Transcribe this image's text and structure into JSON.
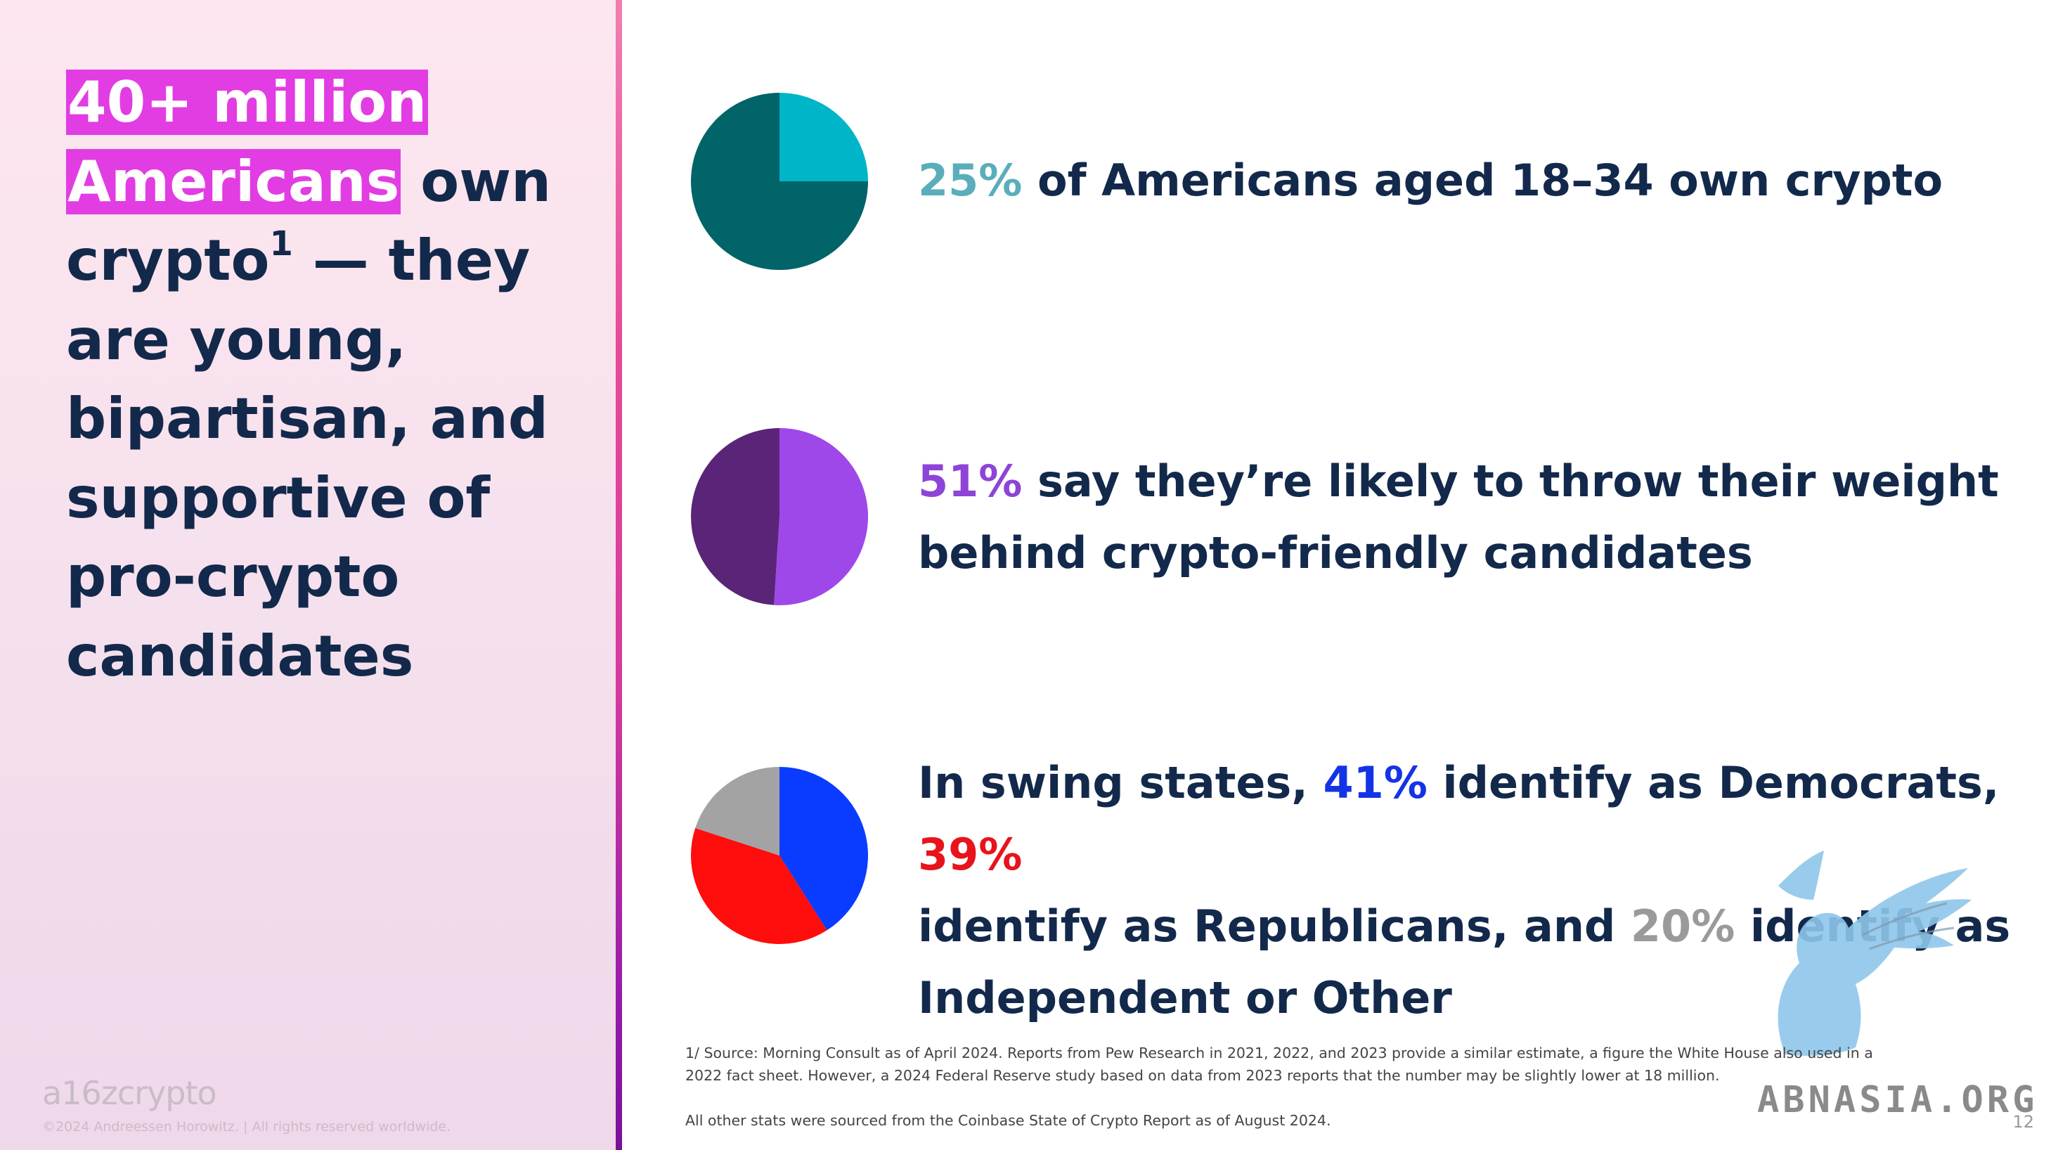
{
  "headline": {
    "highlight_line1": "40+ million",
    "highlight_line2": "Americans",
    "after_highlight": " own",
    "line3_pre": "crypto",
    "line3_sup": "1",
    "line3_post": " — they",
    "line4": "are young,",
    "line5": "bipartisan, and",
    "line6": "supportive of",
    "line7": "pro-crypto",
    "line8": "candidates"
  },
  "stats": {
    "s1_pct": "25%",
    "s1_text": " of Americans aged 18–34 own crypto",
    "s2_pct": "51%",
    "s2_text_a": " say they’re likely to throw their weight",
    "s2_text_b": "behind crypto-friendly candidates",
    "s3_a": "In swing states, ",
    "s3_dem": "41%",
    "s3_b": " identify as Democrats, ",
    "s3_rep": "39%",
    "s3_c": "identify as Republicans, and ",
    "s3_ind": "20%",
    "s3_d": " identify as",
    "s3_e": "Independent or Other"
  },
  "colors": {
    "teal_light": "#00b5c8",
    "teal_dark": "#006469",
    "purple_light": "#9f48ea",
    "purple_dark": "#5a2478",
    "dem_blue": "#0a3cff",
    "rep_red": "#ff0d0d",
    "ind_gray": "#a3a3a3",
    "pct1_text": "#5aaebb",
    "pct2_text": "#8e44d6",
    "dem_text": "#1533e6",
    "rep_text": "#e8141b",
    "ind_text": "#9a9a9a"
  },
  "chart_data": [
    {
      "type": "pie",
      "slices": [
        {
          "label": "Own crypto",
          "value": 25,
          "color": "#00b5c8"
        },
        {
          "label": "Other",
          "value": 75,
          "color": "#006469"
        }
      ]
    },
    {
      "type": "pie",
      "slices": [
        {
          "label": "Likely",
          "value": 51,
          "color": "#9f48ea"
        },
        {
          "label": "Other",
          "value": 49,
          "color": "#5a2478"
        }
      ]
    },
    {
      "type": "pie",
      "slices": [
        {
          "label": "Democrats",
          "value": 41,
          "color": "#0a3cff"
        },
        {
          "label": "Republicans",
          "value": 39,
          "color": "#ff0d0d"
        },
        {
          "label": "Independent or Other",
          "value": 20,
          "color": "#a3a3a3"
        }
      ]
    }
  ],
  "footnote": {
    "line1": "1/ Source: Morning Consult as of April 2024. Reports from Pew Research in 2021, 2022, and 2023 provide a similar estimate, a figure the White House also used in a",
    "line2": "2022 fact sheet. However, a 2024 Federal Reserve study based on data from 2023 reports that the number may be slightly lower at 18 million.",
    "line3": "All other stats were sourced from the Coinbase State of Crypto Report as of August 2024."
  },
  "branding": {
    "logo": "a16zcrypto",
    "copyright": "©2024 Andreessen Horowitz. | All rights reserved worldwide.",
    "page_number": "12",
    "watermark": "ABNASIA.ORG"
  }
}
